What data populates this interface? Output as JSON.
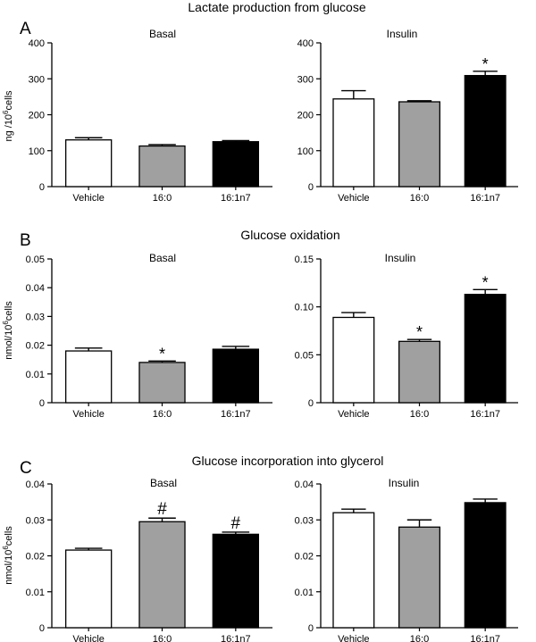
{
  "panels": [
    {
      "letter": "A",
      "title": "Lactate production from glucose",
      "ylabel_main": "ng /10",
      "ylabel_sup": "6",
      "ylabel_tail": "cells",
      "charts": [
        {
          "subtitle": "Basal"
        },
        {
          "subtitle": "Insulin"
        }
      ]
    },
    {
      "letter": "B",
      "title": "Glucose oxidation",
      "ylabel_main": "nmol/10",
      "ylabel_sup": "6",
      "ylabel_tail": "cells",
      "charts": [
        {
          "subtitle": "Basal"
        },
        {
          "subtitle": "Insulin"
        }
      ]
    },
    {
      "letter": "C",
      "title": "Glucose incorporation into glycerol",
      "ylabel_main": "nmol/10",
      "ylabel_sup": "6",
      "ylabel_tail": "cells",
      "charts": [
        {
          "subtitle": "Basal"
        },
        {
          "subtitle": "Insulin"
        }
      ]
    }
  ],
  "chart_data": [
    {
      "type": "bar",
      "panel": "A",
      "subtitle": "Basal",
      "categories": [
        "Vehicle",
        "16:0",
        "16:1n7"
      ],
      "values": [
        130,
        113,
        125
      ],
      "errors": [
        6,
        4,
        3
      ],
      "annotations": [
        "",
        "",
        ""
      ],
      "colors": [
        "#ffffff",
        "#a0a0a0",
        "#000000"
      ],
      "ylim": [
        0,
        400
      ],
      "yticks": [
        0,
        100,
        200,
        300,
        400
      ],
      "ytick_labels": [
        "0",
        "100",
        "200",
        "300",
        "400"
      ]
    },
    {
      "type": "bar",
      "panel": "A",
      "subtitle": "Insulin",
      "categories": [
        "Vehicle",
        "16:0",
        "16:1n7"
      ],
      "values": [
        244,
        236,
        309
      ],
      "errors": [
        23,
        3,
        12
      ],
      "annotations": [
        "",
        "",
        "*"
      ],
      "colors": [
        "#ffffff",
        "#a0a0a0",
        "#000000"
      ],
      "ylim": [
        0,
        400
      ],
      "yticks": [
        0,
        100,
        200,
        300,
        400
      ],
      "ytick_labels": [
        "0",
        "100",
        "200",
        "300",
        "400"
      ]
    },
    {
      "type": "bar",
      "panel": "B",
      "subtitle": "Basal",
      "categories": [
        "Vehicle",
        "16:0",
        "16:1n7"
      ],
      "values": [
        0.018,
        0.014,
        0.0186
      ],
      "errors": [
        0.001,
        0.0005,
        0.001
      ],
      "annotations": [
        "",
        "*",
        ""
      ],
      "colors": [
        "#ffffff",
        "#a0a0a0",
        "#000000"
      ],
      "ylim": [
        0,
        0.05
      ],
      "yticks": [
        0,
        0.01,
        0.02,
        0.03,
        0.04,
        0.05
      ],
      "ytick_labels": [
        "0",
        "0.01",
        "0.02",
        "0.03",
        "0.04",
        "0.05"
      ]
    },
    {
      "type": "bar",
      "panel": "B",
      "subtitle": "Insulin",
      "categories": [
        "Vehicle",
        "16:0",
        "16:1n7"
      ],
      "values": [
        0.089,
        0.064,
        0.113
      ],
      "errors": [
        0.005,
        0.002,
        0.005
      ],
      "annotations": [
        "",
        "*",
        "*"
      ],
      "colors": [
        "#ffffff",
        "#a0a0a0",
        "#000000"
      ],
      "ylim": [
        0,
        0.15
      ],
      "yticks": [
        0,
        0.05,
        0.1,
        0.15
      ],
      "ytick_labels": [
        "0",
        "0.05",
        "0.10",
        "0.15"
      ]
    },
    {
      "type": "bar",
      "panel": "C",
      "subtitle": "Basal",
      "categories": [
        "Vehicle",
        "16:0",
        "16:1n7"
      ],
      "values": [
        0.0216,
        0.0295,
        0.026
      ],
      "errors": [
        0.0005,
        0.001,
        0.0006
      ],
      "annotations": [
        "",
        "#",
        "#"
      ],
      "colors": [
        "#ffffff",
        "#a0a0a0",
        "#000000"
      ],
      "ylim": [
        0,
        0.04
      ],
      "yticks": [
        0,
        0.01,
        0.02,
        0.03,
        0.04
      ],
      "ytick_labels": [
        "0",
        "0.01",
        "0.02",
        "0.03",
        "0.04"
      ]
    },
    {
      "type": "bar",
      "panel": "C",
      "subtitle": "Insulin",
      "categories": [
        "Vehicle",
        "16:0",
        "16:1n7"
      ],
      "values": [
        0.032,
        0.028,
        0.0348
      ],
      "errors": [
        0.001,
        0.002,
        0.001
      ],
      "annotations": [
        "",
        "",
        ""
      ],
      "colors": [
        "#ffffff",
        "#a0a0a0",
        "#000000"
      ],
      "ylim": [
        0,
        0.04
      ],
      "yticks": [
        0,
        0.01,
        0.02,
        0.03,
        0.04
      ],
      "ytick_labels": [
        "0",
        "0.01",
        "0.02",
        "0.03",
        "0.04"
      ]
    }
  ]
}
